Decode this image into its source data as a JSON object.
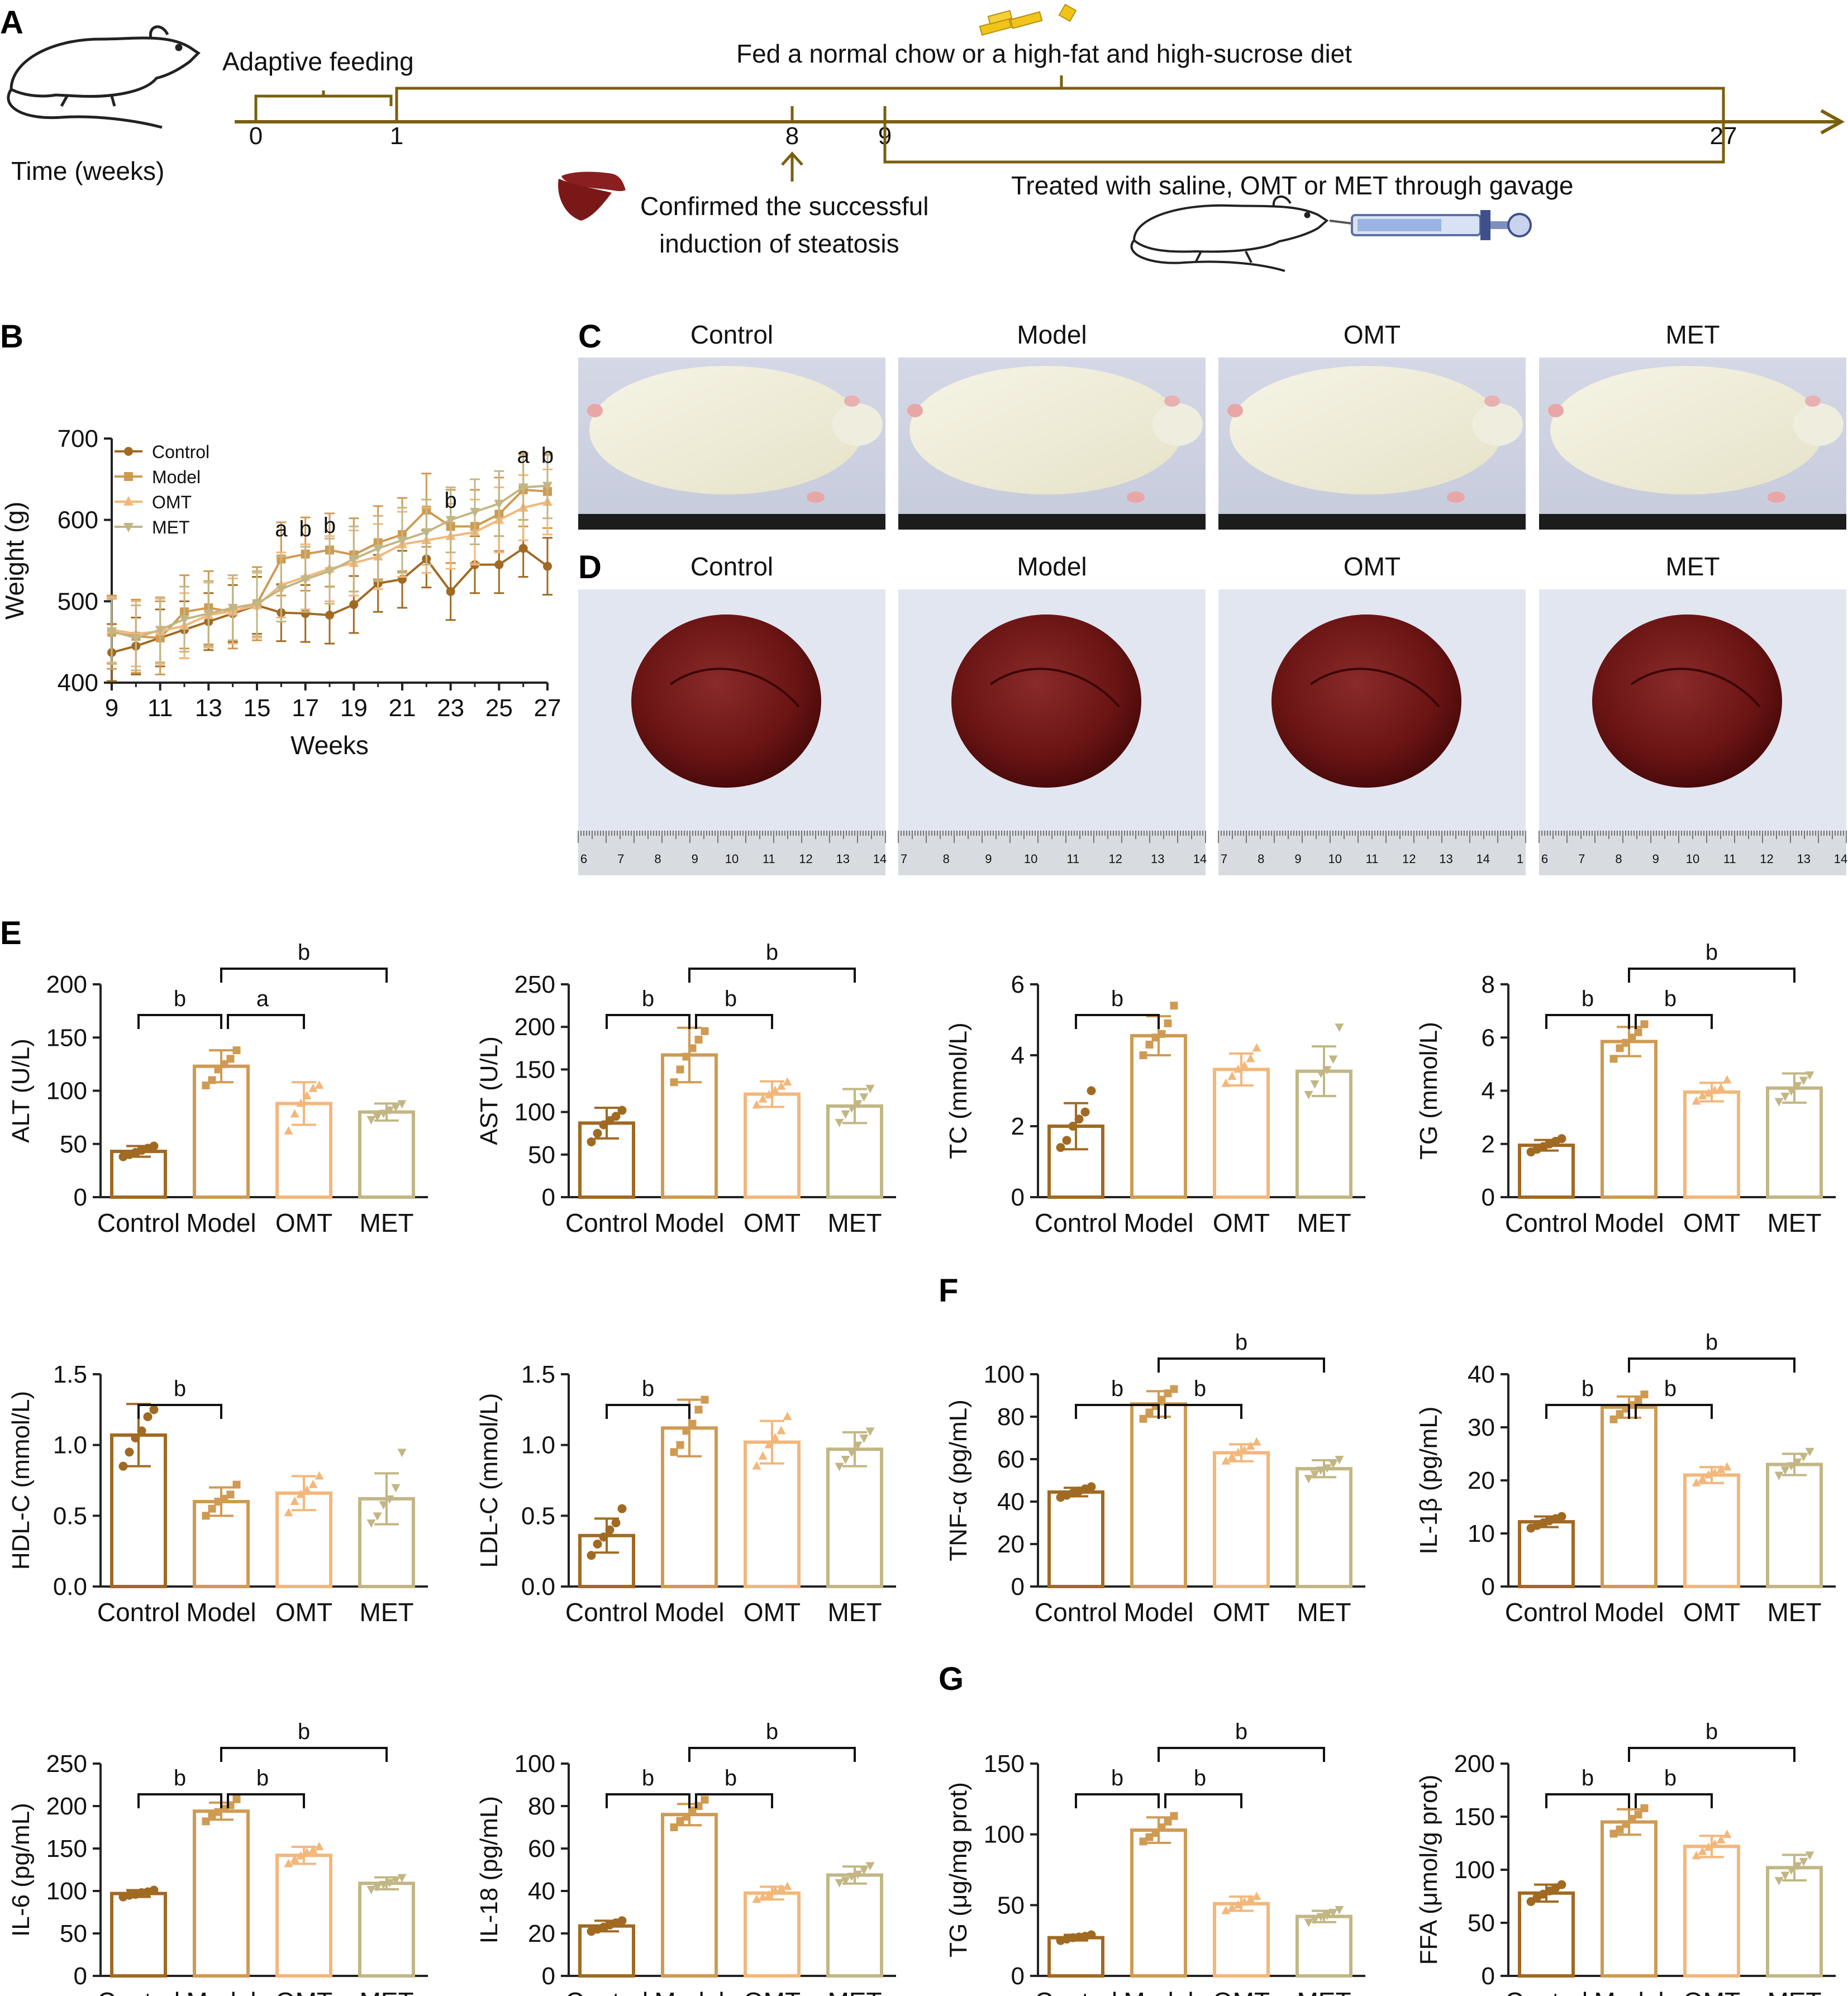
{
  "panel_labels": {
    "a": "A",
    "b": "B",
    "c": "C",
    "d": "D",
    "e": "E",
    "f": "F",
    "g": "G"
  },
  "timeline": {
    "adaptive": "Adaptive feeding",
    "fed": "Fed a normal chow or a high-fat and high-sucrose diet",
    "time_label": "Time (weeks)",
    "ticks": [
      "0",
      "1",
      "8",
      "9",
      "27"
    ],
    "confirmed_line1": "Confirmed the successful",
    "confirmed_line2": "induction of  steatosis",
    "treated": "Treated with saline, OMT or MET through gavage"
  },
  "groups": [
    "Control",
    "Model",
    "OMT",
    "MET"
  ],
  "colors": {
    "Control": "#a06a22",
    "Model": "#cf9a52",
    "OMT": "#f3b77a",
    "MET": "#c2b684",
    "timeline": "#7a5f0e"
  },
  "photos": {
    "c_labels": [
      "Control",
      "Model",
      "OMT",
      "MET"
    ],
    "d_labels": [
      "Control",
      "Model",
      "OMT",
      "MET"
    ],
    "ruler_numbers": [
      [
        "6",
        "7",
        "8",
        "9",
        "10",
        "11",
        "12",
        "13",
        "14"
      ],
      [
        "7",
        "8",
        "9",
        "10",
        "11",
        "12",
        "13",
        "14"
      ],
      [
        "7",
        "8",
        "9",
        "10",
        "11",
        "12",
        "13",
        "14",
        "1"
      ],
      [
        "6",
        "7",
        "8",
        "9",
        "10",
        "11",
        "12",
        "13",
        "14"
      ]
    ]
  },
  "chart_data": [
    {
      "id": "weight",
      "type": "line",
      "xlabel": "Weeks",
      "ylabel": "Weight (g)",
      "xlim": [
        9,
        27
      ],
      "ylim": [
        400,
        700
      ],
      "xticks": [
        "9",
        "11",
        "13",
        "15",
        "17",
        "19",
        "21",
        "23",
        "25",
        "27"
      ],
      "yticks": [
        "400",
        "500",
        "600",
        "700"
      ],
      "x": [
        9,
        10,
        11,
        12,
        13,
        14,
        15,
        16,
        17,
        18,
        19,
        20,
        21,
        22,
        23,
        24,
        25,
        26,
        27
      ],
      "series": [
        {
          "name": "Control",
          "marker": "circle",
          "values": [
            437,
            445,
            455,
            465,
            475,
            485,
            495,
            486,
            485,
            483,
            496,
            522,
            527,
            552,
            512,
            545,
            545,
            565,
            543
          ],
          "err": 35
        },
        {
          "name": "Model",
          "marker": "square",
          "values": [
            462,
            457,
            455,
            487,
            492,
            487,
            497,
            552,
            558,
            563,
            557,
            572,
            582,
            612,
            592,
            592,
            607,
            637,
            635
          ],
          "err": 45
        },
        {
          "name": "OMT",
          "marker": "triangle-up",
          "values": [
            465,
            460,
            463,
            470,
            483,
            488,
            495,
            520,
            530,
            540,
            547,
            555,
            570,
            575,
            580,
            585,
            600,
            615,
            622
          ],
          "err": 40
        },
        {
          "name": "MET",
          "marker": "triangle-down",
          "values": [
            463,
            455,
            465,
            478,
            485,
            492,
            497,
            515,
            527,
            537,
            552,
            565,
            575,
            585,
            600,
            610,
            620,
            640,
            642
          ],
          "err": 40
        }
      ],
      "annotations": [
        {
          "x": 16,
          "y": 580,
          "text": "a"
        },
        {
          "x": 17,
          "y": 580,
          "text": "b"
        },
        {
          "x": 18,
          "y": 584,
          "text": "b"
        },
        {
          "x": 23,
          "y": 615,
          "text": "b"
        },
        {
          "x": 26,
          "y": 670,
          "text": "a"
        },
        {
          "x": 27,
          "y": 670,
          "text": "b"
        }
      ]
    },
    {
      "id": "alt",
      "type": "bar",
      "ylabel": "ALT (U/L)",
      "ylim": [
        0,
        200
      ],
      "yticks": [
        "0",
        "50",
        "100",
        "150",
        "200"
      ],
      "categories": [
        "Control",
        "Model",
        "OMT",
        "MET"
      ],
      "values": [
        43,
        123,
        88,
        80
      ],
      "errors": [
        5,
        15,
        20,
        8
      ],
      "points": [
        [
          38,
          40,
          42,
          44,
          46,
          48
        ],
        [
          105,
          110,
          120,
          125,
          130,
          138
        ],
        [
          62,
          78,
          88,
          95,
          102,
          105
        ],
        [
          73,
          76,
          79,
          82,
          85,
          88
        ]
      ],
      "brackets": [
        {
          "from": 0,
          "to": 1,
          "level": 1,
          "y": 172,
          "label": "b"
        },
        {
          "from": 1,
          "to": 2,
          "level": 1,
          "y": 172,
          "label": "a"
        },
        {
          "from": 1,
          "to": 3,
          "level": 2,
          "y": 200,
          "label": "b"
        }
      ]
    },
    {
      "id": "ast",
      "type": "bar",
      "ylabel": "AST (U/L)",
      "ylim": [
        0,
        250
      ],
      "yticks": [
        "0",
        "50",
        "100",
        "150",
        "200",
        "250"
      ],
      "categories": [
        "Control",
        "Model",
        "OMT",
        "MET"
      ],
      "values": [
        87,
        167,
        121,
        107
      ],
      "errors": [
        18,
        32,
        15,
        20
      ],
      "points": [
        [
          65,
          75,
          85,
          90,
          95,
          102
        ],
        [
          135,
          150,
          165,
          175,
          185,
          195
        ],
        [
          108,
          115,
          120,
          125,
          130,
          135
        ],
        [
          88,
          98,
          105,
          110,
          118,
          128
        ]
      ],
      "brackets": [
        {
          "from": 0,
          "to": 1,
          "label": "b",
          "level": 1
        },
        {
          "from": 1,
          "to": 2,
          "label": "b",
          "level": 1
        },
        {
          "from": 1,
          "to": 3,
          "label": "b",
          "level": 2
        }
      ]
    },
    {
      "id": "tc",
      "type": "bar",
      "ylabel": "TC (mmol/L)",
      "ylim": [
        0,
        6
      ],
      "yticks": [
        "0",
        "2",
        "4",
        "6"
      ],
      "categories": [
        "Control",
        "Model",
        "OMT",
        "MET"
      ],
      "values": [
        2.0,
        4.55,
        3.6,
        3.55
      ],
      "errors": [
        0.65,
        0.55,
        0.45,
        0.7
      ],
      "points": [
        [
          1.4,
          1.6,
          2.0,
          2.2,
          2.4,
          3.0
        ],
        [
          4.0,
          4.3,
          4.5,
          4.6,
          4.9,
          5.4
        ],
        [
          3.2,
          3.4,
          3.6,
          3.7,
          3.9,
          4.2
        ],
        [
          2.9,
          3.2,
          3.5,
          3.6,
          3.9,
          4.8
        ]
      ],
      "brackets": [
        {
          "from": 0,
          "to": 1,
          "label": "b",
          "level": 1
        }
      ]
    },
    {
      "id": "tg_serum",
      "type": "bar",
      "ylabel": "TG (mmol/L)",
      "ylim": [
        0,
        8
      ],
      "yticks": [
        "0",
        "2",
        "4",
        "6",
        "8"
      ],
      "categories": [
        "Control",
        "Model",
        "OMT",
        "MET"
      ],
      "values": [
        1.95,
        5.85,
        3.95,
        4.1
      ],
      "errors": [
        0.2,
        0.55,
        0.35,
        0.55
      ],
      "points": [
        [
          1.7,
          1.8,
          1.9,
          2.0,
          2.1,
          2.2
        ],
        [
          5.2,
          5.6,
          5.8,
          6.0,
          6.2,
          6.5
        ],
        [
          3.6,
          3.8,
          3.9,
          4.0,
          4.1,
          4.4
        ],
        [
          3.6,
          3.8,
          4.0,
          4.2,
          4.4,
          4.6
        ]
      ],
      "brackets": [
        {
          "from": 0,
          "to": 1,
          "label": "b",
          "level": 1
        },
        {
          "from": 1,
          "to": 2,
          "label": "b",
          "level": 1
        },
        {
          "from": 1,
          "to": 3,
          "label": "b",
          "level": 2
        }
      ]
    },
    {
      "id": "hdl",
      "type": "bar",
      "ylabel": "HDL-C (mmol/L)",
      "ylim": [
        0,
        1.5
      ],
      "yticks": [
        "0.0",
        "0.5",
        "1.0",
        "1.5"
      ],
      "categories": [
        "Control",
        "Model",
        "OMT",
        "MET"
      ],
      "values": [
        1.07,
        0.6,
        0.66,
        0.62
      ],
      "errors": [
        0.22,
        0.1,
        0.12,
        0.18
      ],
      "points": [
        [
          0.85,
          0.95,
          1.05,
          1.1,
          1.2,
          1.25
        ],
        [
          0.5,
          0.55,
          0.6,
          0.62,
          0.65,
          0.72
        ],
        [
          0.52,
          0.6,
          0.65,
          0.68,
          0.72,
          0.78
        ],
        [
          0.45,
          0.5,
          0.58,
          0.62,
          0.7,
          0.95
        ]
      ],
      "brackets": [
        {
          "from": 0,
          "to": 1,
          "label": "b",
          "level": 1
        }
      ]
    },
    {
      "id": "ldl",
      "type": "bar",
      "ylabel": "LDL-C (mmol/L)",
      "ylim": [
        0,
        1.5
      ],
      "yticks": [
        "0.0",
        "0.5",
        "1.0",
        "1.5"
      ],
      "categories": [
        "Control",
        "Model",
        "OMT",
        "MET"
      ],
      "values": [
        0.36,
        1.12,
        1.02,
        0.97
      ],
      "errors": [
        0.12,
        0.2,
        0.15,
        0.12
      ],
      "points": [
        [
          0.22,
          0.3,
          0.35,
          0.4,
          0.45,
          0.55
        ],
        [
          0.95,
          1.0,
          1.1,
          1.15,
          1.25,
          1.32
        ],
        [
          0.85,
          0.92,
          1.0,
          1.05,
          1.1,
          1.2
        ],
        [
          0.85,
          0.9,
          0.95,
          1.0,
          1.05,
          1.1
        ]
      ],
      "brackets": [
        {
          "from": 0,
          "to": 1,
          "label": "b",
          "level": 1
        }
      ]
    },
    {
      "id": "tnf",
      "type": "bar",
      "ylabel": "TNF-α (pg/mL)",
      "ylim": [
        0,
        100
      ],
      "yticks": [
        "0",
        "20",
        "40",
        "60",
        "80",
        "100"
      ],
      "categories": [
        "Control",
        "Model",
        "OMT",
        "MET"
      ],
      "values": [
        44.5,
        86,
        63,
        55.5
      ],
      "errors": [
        2,
        6,
        4,
        4
      ],
      "points": [
        [
          42,
          43,
          44,
          45,
          46,
          47
        ],
        [
          79,
          82,
          85,
          88,
          91,
          93
        ],
        [
          59,
          61,
          63,
          64,
          66,
          68
        ],
        [
          51,
          53,
          55,
          56,
          58,
          60
        ]
      ],
      "brackets": [
        {
          "from": 0,
          "to": 1,
          "label": "b",
          "level": 1
        },
        {
          "from": 1,
          "to": 2,
          "label": "b",
          "level": 1
        },
        {
          "from": 1,
          "to": 3,
          "label": "b",
          "level": 2
        }
      ]
    },
    {
      "id": "il1b",
      "type": "bar",
      "ylabel": "IL-1β (pg/mL)",
      "ylim": [
        0,
        40
      ],
      "yticks": [
        "0",
        "10",
        "20",
        "30",
        "40"
      ],
      "categories": [
        "Control",
        "Model",
        "OMT",
        "MET"
      ],
      "values": [
        12.2,
        33.8,
        21,
        23
      ],
      "errors": [
        1,
        2,
        1.5,
        2
      ],
      "points": [
        [
          11,
          11.5,
          12,
          12.4,
          12.8,
          13.2
        ],
        [
          31.5,
          32.5,
          33.5,
          34.2,
          35,
          36.2
        ],
        [
          19.5,
          20.2,
          21,
          21.4,
          22,
          22.5
        ],
        [
          21,
          22,
          22.8,
          23.5,
          24.5,
          25.5
        ]
      ],
      "brackets": [
        {
          "from": 0,
          "to": 1,
          "label": "b",
          "level": 1
        },
        {
          "from": 1,
          "to": 2,
          "label": "b",
          "level": 1
        },
        {
          "from": 1,
          "to": 3,
          "label": "b",
          "level": 2
        }
      ]
    },
    {
      "id": "il6",
      "type": "bar",
      "ylabel": "IL-6 (pg/mL)",
      "ylim": [
        0,
        250
      ],
      "yticks": [
        "0",
        "50",
        "100",
        "150",
        "200",
        "250"
      ],
      "categories": [
        "Control",
        "Model",
        "OMT",
        "MET"
      ],
      "values": [
        97,
        194,
        142,
        109
      ],
      "errors": [
        4,
        10,
        10,
        7
      ],
      "points": [
        [
          93,
          95,
          96,
          98,
          99,
          101
        ],
        [
          182,
          188,
          193,
          197,
          201,
          208
        ],
        [
          132,
          137,
          141,
          145,
          148,
          152
        ],
        [
          102,
          105,
          108,
          110,
          113,
          116
        ]
      ],
      "brackets": [
        {
          "from": 0,
          "to": 1,
          "label": "b",
          "level": 1
        },
        {
          "from": 1,
          "to": 2,
          "label": "b",
          "level": 1
        },
        {
          "from": 1,
          "to": 3,
          "label": "b",
          "level": 2
        }
      ]
    },
    {
      "id": "il18",
      "type": "bar",
      "ylabel": "IL-18 (pg/mL)",
      "ylim": [
        0,
        100
      ],
      "yticks": [
        "0",
        "20",
        "40",
        "60",
        "80",
        "100"
      ],
      "categories": [
        "Control",
        "Model",
        "OMT",
        "MET"
      ],
      "values": [
        23.5,
        76,
        39,
        47.5
      ],
      "errors": [
        2.5,
        5,
        3,
        4
      ],
      "points": [
        [
          21,
          22,
          23,
          24,
          25,
          26
        ],
        [
          70,
          73,
          75,
          78,
          80,
          83
        ],
        [
          36,
          37,
          38,
          40,
          41,
          42
        ],
        [
          44,
          45,
          47,
          48,
          50,
          52
        ]
      ],
      "brackets": [
        {
          "from": 0,
          "to": 1,
          "label": "b",
          "level": 1
        },
        {
          "from": 1,
          "to": 2,
          "label": "b",
          "level": 1
        },
        {
          "from": 1,
          "to": 3,
          "label": "b",
          "level": 2
        }
      ]
    },
    {
      "id": "tg_liver",
      "type": "bar",
      "ylabel": "TG (μg/mg prot)",
      "ylim": [
        0,
        150
      ],
      "yticks": [
        "0",
        "50",
        "100",
        "150"
      ],
      "categories": [
        "Control",
        "Model",
        "OMT",
        "MET"
      ],
      "values": [
        27,
        103,
        51,
        42
      ],
      "errors": [
        2,
        9,
        5,
        4
      ],
      "points": [
        [
          25,
          26,
          27,
          27.5,
          28,
          29
        ],
        [
          95,
          98,
          101,
          105,
          109,
          113
        ],
        [
          46,
          48,
          50,
          52,
          54,
          56
        ],
        [
          38,
          40,
          42,
          43,
          45,
          47
        ]
      ],
      "brackets": [
        {
          "from": 0,
          "to": 1,
          "label": "b",
          "level": 1
        },
        {
          "from": 1,
          "to": 2,
          "label": "b",
          "level": 1
        },
        {
          "from": 1,
          "to": 3,
          "label": "b",
          "level": 2
        }
      ]
    },
    {
      "id": "ffa",
      "type": "bar",
      "ylabel": "FFA (μmol/g prot)",
      "ylim": [
        0,
        200
      ],
      "yticks": [
        "0",
        "50",
        "100",
        "150",
        "200"
      ],
      "categories": [
        "Control",
        "Model",
        "OMT",
        "MET"
      ],
      "values": [
        78,
        145,
        122,
        102
      ],
      "errors": [
        8,
        12,
        10,
        12
      ],
      "points": [
        [
          70,
          74,
          77,
          80,
          83,
          86
        ],
        [
          134,
          138,
          143,
          148,
          152,
          158
        ],
        [
          113,
          117,
          121,
          124,
          128,
          133
        ],
        [
          90,
          95,
          100,
          104,
          108,
          114
        ]
      ],
      "brackets": [
        {
          "from": 0,
          "to": 1,
          "label": "b",
          "level": 1
        },
        {
          "from": 1,
          "to": 2,
          "label": "b",
          "level": 1
        },
        {
          "from": 1,
          "to": 3,
          "label": "b",
          "level": 2
        }
      ]
    }
  ]
}
